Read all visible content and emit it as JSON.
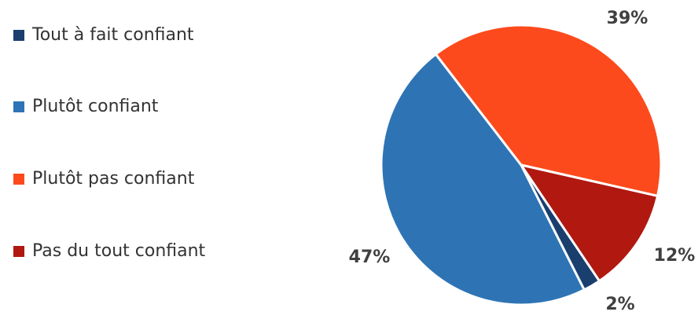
{
  "chart_data": {
    "type": "pie",
    "categories": [
      "Tout à fait confiant",
      "Plutôt confiant",
      "Plutôt pas confiant",
      "Pas du tout confiant"
    ],
    "values": [
      2,
      47,
      39,
      12
    ],
    "value_labels": [
      "2%",
      "47%",
      "39%",
      "12%"
    ],
    "colors": [
      "#1a3f6e",
      "#2e74b5",
      "#fd4a1c",
      "#b01810"
    ],
    "legend": "left"
  }
}
